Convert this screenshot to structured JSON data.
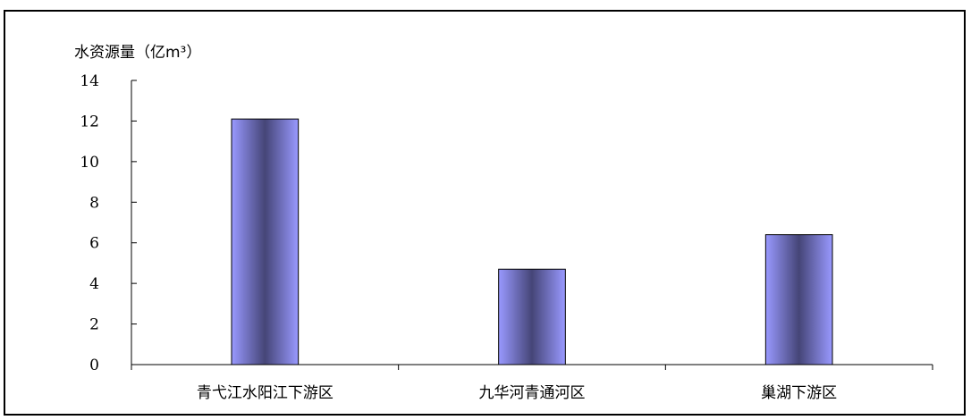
{
  "chart_data": {
    "type": "bar",
    "ylabel": "水资源量（亿m³）",
    "categories": [
      "青弋江水阳江下游区",
      "九华河青通河区",
      "巢湖下游区"
    ],
    "values": [
      12.1,
      4.7,
      6.4
    ],
    "ylim": [
      0,
      14
    ],
    "yticks": [
      0,
      2,
      4,
      6,
      8,
      10,
      12,
      14
    ],
    "grid": false,
    "legend": "none",
    "bar_color": "#9999ff",
    "bar_shade_color": "#454577"
  }
}
